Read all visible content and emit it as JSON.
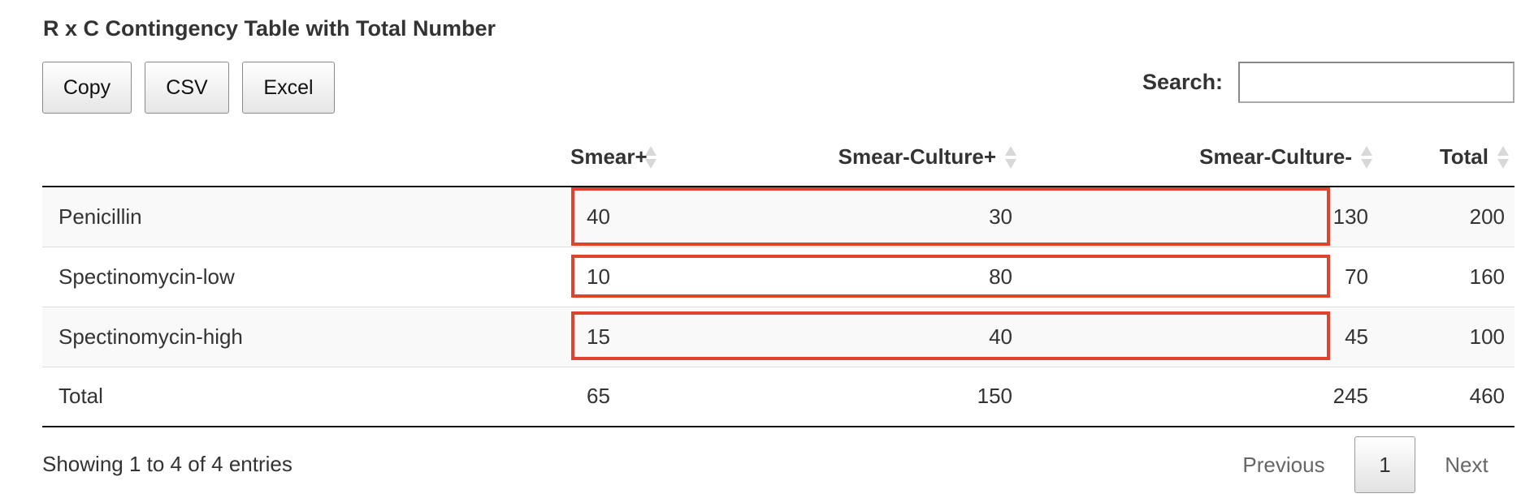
{
  "title": "R x C Contingency Table with Total Number",
  "buttons": {
    "copy": "Copy",
    "csv": "CSV",
    "excel": "Excel"
  },
  "search": {
    "label": "Search:",
    "value": "",
    "placeholder": ""
  },
  "table": {
    "columns": [
      "",
      "Smear+",
      "Smear-Culture+",
      "Smear-Culture-",
      "Total"
    ],
    "rows": [
      [
        "Penicillin",
        "40",
        "30",
        "130",
        "200"
      ],
      [
        "Spectinomycin-low",
        "10",
        "80",
        "70",
        "160"
      ],
      [
        "Spectinomycin-high",
        "15",
        "40",
        "45",
        "100"
      ],
      [
        "Total",
        "65",
        "150",
        "245",
        "460"
      ]
    ]
  },
  "highlight": {
    "color": "#e0432c"
  },
  "footer": {
    "info": "Showing 1 to 4 of 4 entries",
    "previous": "Previous",
    "current_page": "1",
    "next": "Next"
  }
}
